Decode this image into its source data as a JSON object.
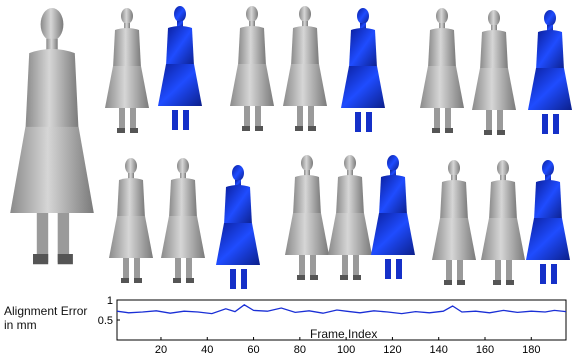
{
  "figure": {
    "ylabel_line1": "Alignment Error",
    "ylabel_line2": "in mm",
    "xlabel": "Frame Index"
  },
  "chart_data": {
    "type": "line",
    "title": "",
    "xlabel": "Frame Index",
    "ylabel": "Alignment Error in mm",
    "xlim": [
      1,
      195
    ],
    "ylim": [
      0,
      1
    ],
    "xticks": [
      20,
      40,
      60,
      80,
      100,
      120,
      140,
      160,
      180
    ],
    "yticks": [
      0.5,
      1
    ],
    "ytick_labels": [
      "0.5",
      "1"
    ],
    "grid": false,
    "legend": "none",
    "line_color": "#1a2fd6",
    "series": [
      {
        "x": [
          1,
          6,
          12,
          18,
          24,
          30,
          36,
          42,
          48,
          52,
          56,
          60,
          66,
          72,
          78,
          84,
          90,
          96,
          100,
          106,
          112,
          118,
          124,
          130,
          136,
          142,
          146,
          150,
          156,
          162,
          168,
          174,
          180,
          186,
          190,
          195
        ],
        "y": [
          0.72,
          0.68,
          0.7,
          0.73,
          0.67,
          0.72,
          0.7,
          0.66,
          0.78,
          0.71,
          0.88,
          0.74,
          0.72,
          0.8,
          0.69,
          0.73,
          0.67,
          0.75,
          0.72,
          0.68,
          0.73,
          0.7,
          0.66,
          0.71,
          0.68,
          0.72,
          0.85,
          0.7,
          0.72,
          0.68,
          0.74,
          0.69,
          0.72,
          0.7,
          0.74,
          0.71
        ]
      }
    ]
  },
  "figures_panel": {
    "mesh_color": "#b5b5b5",
    "error_color": "#1530c8"
  }
}
